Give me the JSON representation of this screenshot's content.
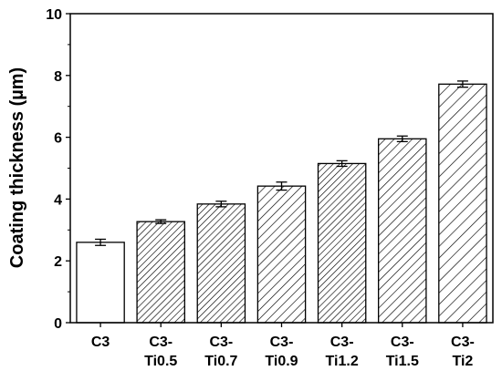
{
  "chart_data": {
    "type": "bar",
    "title": "",
    "xlabel": "",
    "ylabel": "Coating thickness (µm)",
    "ylim": [
      0,
      10
    ],
    "yticks": [
      "0",
      "2",
      "4",
      "6",
      "8",
      "10"
    ],
    "categories": [
      [
        "C3"
      ],
      [
        "C3-",
        "Ti0.5"
      ],
      [
        "C3-",
        "Ti0.7"
      ],
      [
        "C3-",
        "Ti0.9"
      ],
      [
        "C3-",
        "Ti1.2"
      ],
      [
        "C3-",
        "Ti1.5"
      ],
      [
        "C3-",
        "Ti2"
      ]
    ],
    "values": [
      2.6,
      3.27,
      3.84,
      4.42,
      5.15,
      5.95,
      7.72
    ],
    "errors": [
      0.1,
      0.06,
      0.09,
      0.13,
      0.09,
      0.09,
      0.1
    ],
    "grid": false,
    "legend": "none",
    "hatch": [
      "none",
      "dense",
      "dense",
      "medium",
      "dense",
      "medium",
      "sparse"
    ],
    "colors": {
      "bar_fill": "#ffffff",
      "stroke": "#000000"
    }
  }
}
